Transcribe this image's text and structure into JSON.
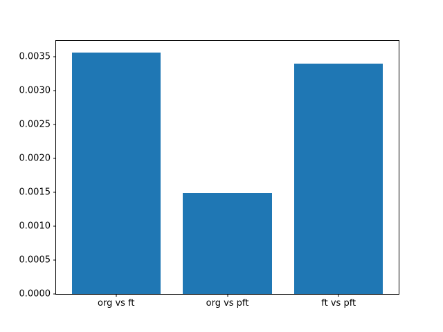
{
  "chart_data": {
    "type": "bar",
    "title": "",
    "xlabel": "",
    "ylabel": "",
    "categories": [
      "org vs ft",
      "org vs pft",
      "ft vs pft"
    ],
    "values": [
      0.00356,
      0.00149,
      0.0034
    ],
    "bar_color": "#1f77b4",
    "bar_width_data_units": 0.8,
    "x_positions": [
      0,
      1,
      2
    ],
    "xlim": [
      -0.54,
      2.54
    ],
    "ylim": [
      0,
      0.003738
    ],
    "yticks": [
      0.0,
      0.0005,
      0.001,
      0.0015,
      0.002,
      0.0025,
      0.003,
      0.0035
    ],
    "ytick_labels": [
      "0.0000",
      "0.0005",
      "0.0010",
      "0.0015",
      "0.0020",
      "0.0025",
      "0.0030",
      "0.0035"
    ],
    "grid": false,
    "legend_position": "none"
  },
  "figure": {
    "background_color": "#ffffff",
    "spine_color": "#000000",
    "text_color": "#000000"
  }
}
